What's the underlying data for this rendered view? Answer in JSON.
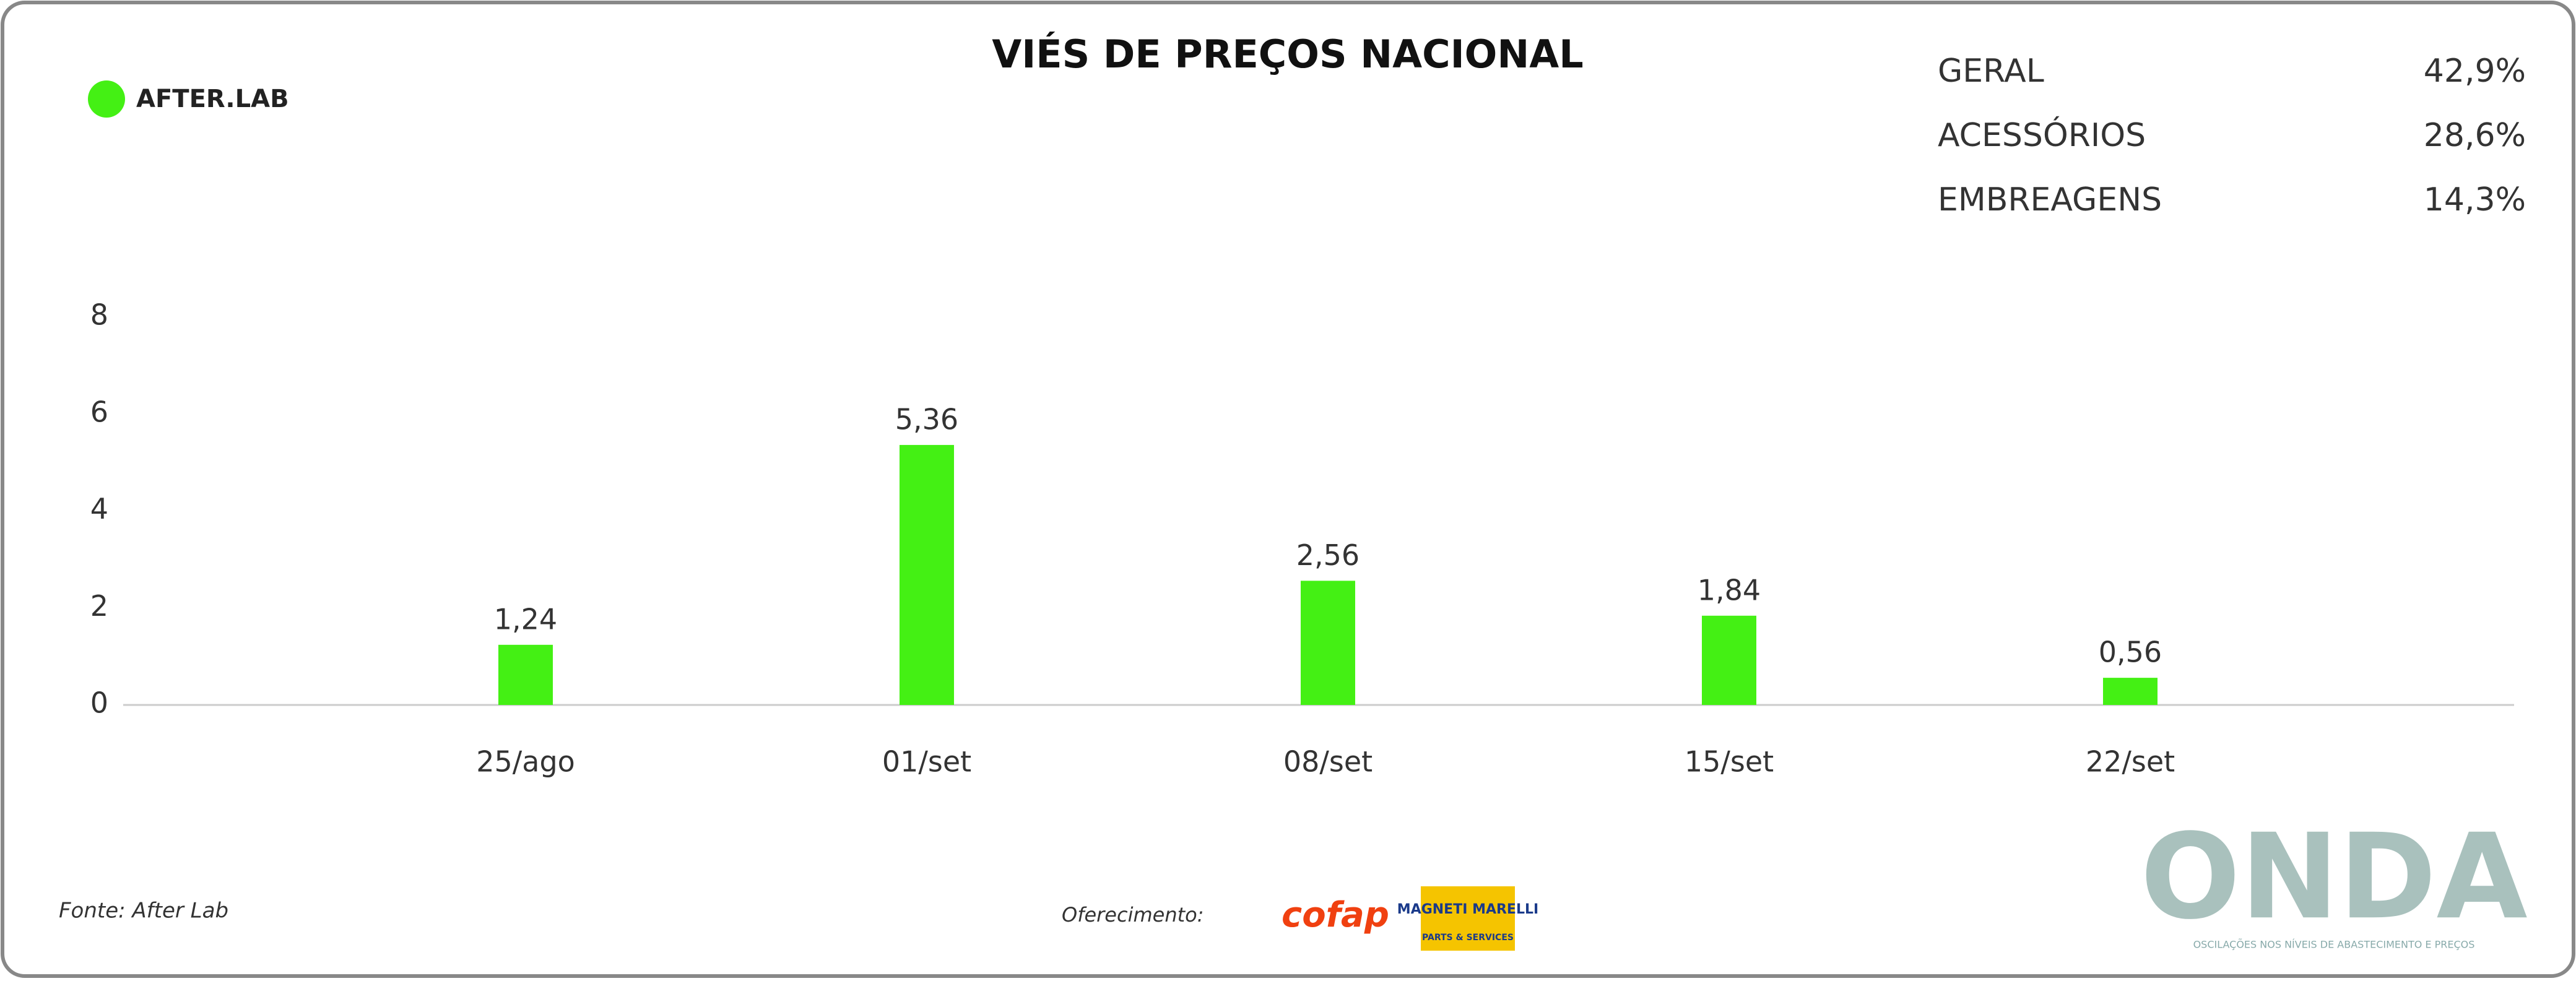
{
  "brand": "AFTER.LAB",
  "chart_data": {
    "type": "bar",
    "title": "VIÉS DE PREÇOS NACIONAL",
    "categories": [
      "25/ago",
      "01/set",
      "08/set",
      "15/set",
      "22/set"
    ],
    "values": [
      1.24,
      5.36,
      2.56,
      1.84,
      0.56
    ],
    "value_labels": [
      "1,24",
      "5,36",
      "2,56",
      "1,84",
      "0,56"
    ],
    "color": "#44f014",
    "ylim": [
      0,
      8
    ],
    "yticks": [
      0,
      2,
      4,
      6,
      8
    ]
  },
  "summary": [
    {
      "label": "GERAL",
      "value": "42,9%"
    },
    {
      "label": "ACESSÓRIOS",
      "value": "28,6%"
    },
    {
      "label": "EMBREAGENS",
      "value": "14,3%"
    }
  ],
  "footer": {
    "source": "Fonte: After Lab",
    "sponsor_label": "Oferecimento:",
    "sponsor1": "cofap",
    "sponsor2": "MAGNETI MARELLI",
    "sponsor2_sub": "PARTS & SERVICES",
    "logo": "ONDA",
    "logo_sub": "OSCILAÇÕES NOS NÍVEIS DE ABASTECIMENTO E PREÇOS"
  }
}
